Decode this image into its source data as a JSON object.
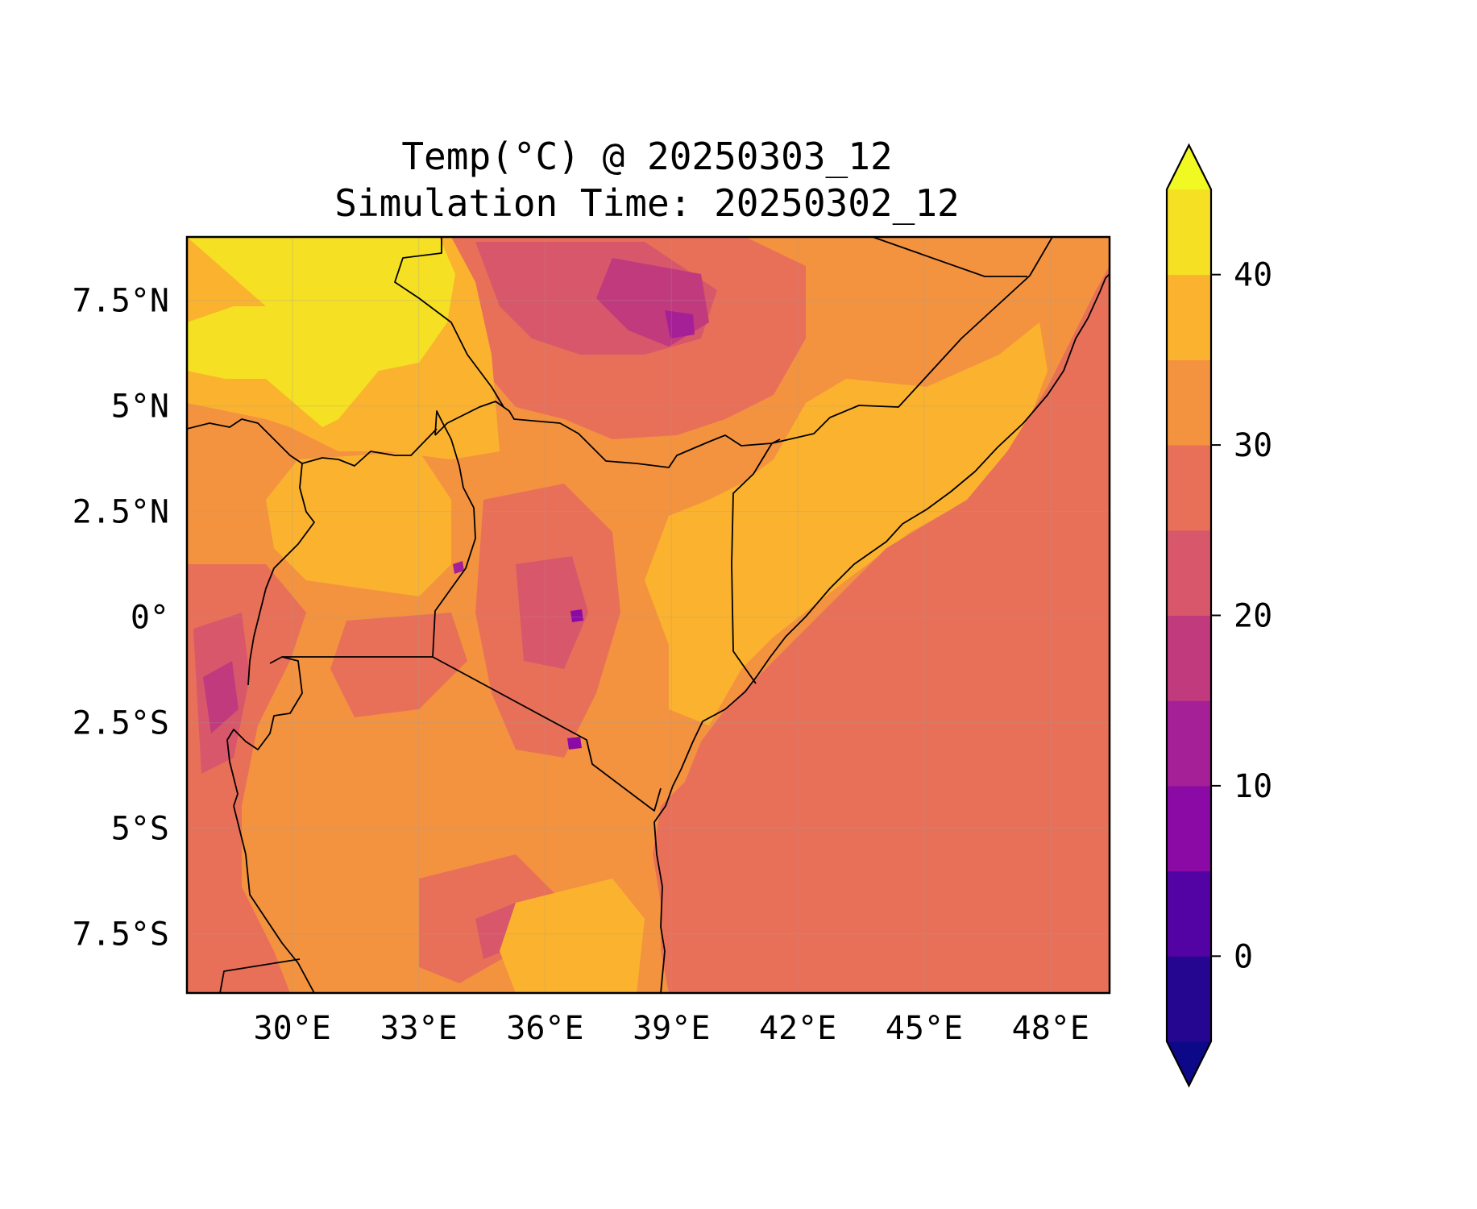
{
  "title": {
    "line1": "Temp(°C) @ 20250303_12",
    "line2": "Simulation Time: 20250302_12"
  },
  "map": {
    "projection": "PlateCarree",
    "extent": {
      "lon_min": 27.5,
      "lon_max": 49.4,
      "lat_min": -8.9,
      "lat_max": 9.0
    },
    "lon_ticks": [
      {
        "value": 30,
        "label": "30°E"
      },
      {
        "value": 33,
        "label": "33°E"
      },
      {
        "value": 36,
        "label": "36°E"
      },
      {
        "value": 39,
        "label": "39°E"
      },
      {
        "value": 42,
        "label": "42°E"
      },
      {
        "value": 45,
        "label": "45°E"
      },
      {
        "value": 48,
        "label": "48°E"
      }
    ],
    "lat_ticks": [
      {
        "value": 7.5,
        "label": "7.5°N"
      },
      {
        "value": 5,
        "label": "5°N"
      },
      {
        "value": 2.5,
        "label": "2.5°N"
      },
      {
        "value": 0,
        "label": "0°"
      },
      {
        "value": -2.5,
        "label": "2.5°S"
      },
      {
        "value": -5,
        "label": "5°S"
      },
      {
        "value": -7.5,
        "label": "7.5°S"
      }
    ],
    "gridlines": true,
    "ocean_temp_c": 27.5
  },
  "colorbar": {
    "colormap": "plasma",
    "vmin": -5,
    "vmax": 45,
    "step": 5,
    "extend": "both",
    "tick_values": [
      0,
      10,
      20,
      30,
      40
    ],
    "tick_labels": [
      "0",
      "10",
      "20",
      "30",
      "40"
    ],
    "colors": [
      "#0d0887",
      "#240691",
      "#5302a3",
      "#8b0aa5",
      "#a51f96",
      "#c13a7d",
      "#d8576b",
      "#e87059",
      "#f39340",
      "#fbb32f",
      "#f5e024",
      "#f0f921"
    ]
  }
}
